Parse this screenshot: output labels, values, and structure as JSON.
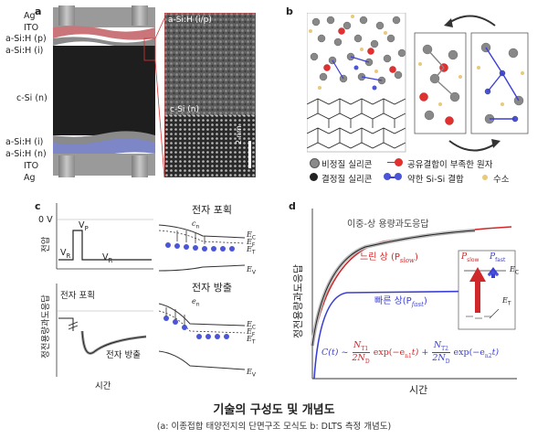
{
  "panel_a": {
    "letter": "a",
    "layers_top": [
      "Ag",
      "ITO",
      "a-Si:H (p)",
      "a-Si:H (i)"
    ],
    "layer_middle": "c-Si (n)",
    "layers_bottom": [
      "a-Si:H (i)",
      "a-Si:H (n)",
      "ITO",
      "Ag"
    ],
    "tem_top_label": "a-Si:H (i/p)",
    "tem_bottom_label": "c-Si (n)",
    "scale_bar": "2 nm"
  },
  "panel_b": {
    "letter": "b",
    "legend": [
      {
        "marker": "gray-atom",
        "text": "비정질 실리콘"
      },
      {
        "marker": "red-atom",
        "text": "공유결합이 부족한 원자"
      },
      {
        "marker": "black-atom",
        "text": "결정질 실리콘"
      },
      {
        "marker": "blue-bond",
        "text": "약한 Si-Si 결합"
      },
      {
        "marker": "yellow-atom",
        "text": "수소"
      }
    ]
  },
  "panel_c": {
    "letter": "c",
    "voltage_axis": "전압",
    "zero_v": "0 V",
    "vp": "V",
    "vp_sub": "P",
    "vr": "V",
    "vr_sub": "R",
    "capture_label": "전자 포획",
    "transient_axis": "정전용량과도응답",
    "emission_label": "전자 방출",
    "time_axis": "시간",
    "band_capture_title": "전자 포획",
    "band_emission_title": "전자 방출",
    "cn": "c",
    "cn_sub": "n",
    "en": "e",
    "en_sub": "n",
    "ec": "E",
    "ec_sub": "C",
    "ef": "E",
    "ef_sub": "F",
    "et": "E",
    "et_sub": "T",
    "ev": "E",
    "ev_sub": "V"
  },
  "panel_d": {
    "letter": "d",
    "y_axis": "정전용량과도응답",
    "x_axis": "시간",
    "dual_label": "이중-상 용량과도응답",
    "slow_label": "느린 상 (P",
    "slow_sub": "slow",
    "fast_label": "빠른 상(P",
    "fast_sub": "fast",
    "inset_pslow": "P",
    "inset_pslow_sub": "slow",
    "inset_pfast": "P",
    "inset_pfast_sub": "fast",
    "inset_ec": "E",
    "inset_ec_sub": "C",
    "inset_et": "E",
    "inset_et_sub": "T",
    "formula_lhs": "C(t) ~",
    "nt1": "N",
    "nt1_sub": "T1",
    "nt2": "N",
    "nt2_sub": "T2",
    "denom": "2N",
    "denom_sub": "D",
    "exp1": "exp(−e",
    "exp1_sub": "n1",
    "exp1_tail": "t)",
    "plus": "+",
    "exp2": "exp(−e",
    "exp2_sub": "n2",
    "exp2_tail": "t)",
    "colors": {
      "slow": "#d0282a",
      "fast": "#3b3fd6",
      "dual": "#222222"
    }
  },
  "caption": {
    "title": "기술의 구성도 및 개념도",
    "subtitle": "(a: 이종접합 태양전지의 단면구조 모식도 b: DLTS 측정 개념도)"
  }
}
